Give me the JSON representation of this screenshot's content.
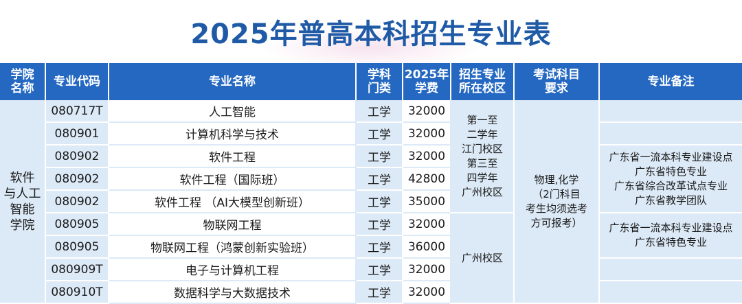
{
  "title": "2025年普高本科招生专业表",
  "headers": {
    "college": [
      "学院",
      "名称"
    ],
    "code": "专业代码",
    "major": "专业名称",
    "category": [
      "学科",
      "门类"
    ],
    "fee": [
      "2025年",
      "学费"
    ],
    "campus": [
      "招生专业",
      "所在校区"
    ],
    "exam": [
      "考试科目",
      "要求"
    ],
    "notes": "专业备注"
  },
  "college": [
    "软件",
    "与人工",
    "智能",
    "学院"
  ],
  "campus_groups": [
    [
      "第一至",
      "二学年",
      "江门校区",
      "第三至",
      "四学年",
      "广州校区"
    ],
    [
      "广州校区"
    ]
  ],
  "exam": [
    "物理,化学",
    "（2门科目",
    "考生均须选考",
    "方可报考）"
  ],
  "notes_groups": [
    [
      "广东省一流本科专业建设点",
      "广东省特色专业",
      "广东省综合改革试点专业",
      "广东省教学团队"
    ],
    [
      "广东省一流本科专业建设点",
      "广东省特色专业"
    ]
  ],
  "rows": [
    {
      "code": "080717T",
      "major": "人工智能",
      "category": "工学",
      "fee": "32000"
    },
    {
      "code": "080901",
      "major": "计算机科学与技术",
      "category": "工学",
      "fee": "32000"
    },
    {
      "code": "080902",
      "major": "软件工程",
      "category": "工学",
      "fee": "32000"
    },
    {
      "code": "080902",
      "major": "软件工程（国际班）",
      "category": "工学",
      "fee": "42800"
    },
    {
      "code": "080902",
      "major": "软件工程 （AI大模型创新班）",
      "category": "工学",
      "fee": "35000"
    },
    {
      "code": "080905",
      "major": "物联网工程",
      "category": "工学",
      "fee": "32000"
    },
    {
      "code": "080905",
      "major": "物联网工程（鸿蒙创新实验班）",
      "category": "工学",
      "fee": "36000"
    },
    {
      "code": "080909T",
      "major": "电子与计算机工程",
      "category": "工学",
      "fee": "32000"
    },
    {
      "code": "080910T",
      "major": "数据科学与大数据技术",
      "category": "工学",
      "fee": "32000"
    }
  ],
  "colors": {
    "header_bg": "#2468c2",
    "title": "#1f5aa6",
    "cell_light": "#dce9f6"
  }
}
